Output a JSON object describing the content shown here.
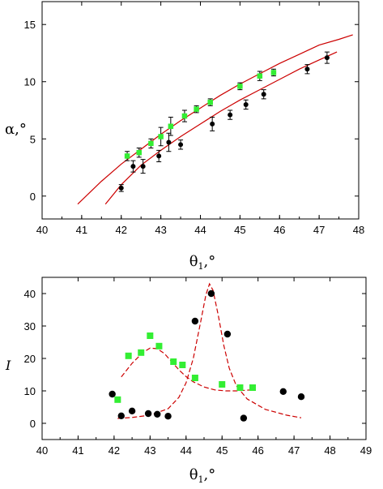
{
  "chart_data": [
    {
      "type": "scatter",
      "title": "",
      "xlabel": "θ1,°",
      "ylabel": "α,°",
      "xlim": [
        40,
        48
      ],
      "ylim": [
        -2,
        17
      ],
      "xticks": [
        40,
        41,
        42,
        43,
        44,
        45,
        46,
        47,
        48
      ],
      "yticks": [
        0,
        5,
        10,
        15
      ],
      "grid": false,
      "colors": {
        "black": "#000000",
        "green": "#33ee33",
        "curve": "#cc0000"
      },
      "series": [
        {
          "marker": "black-circle",
          "points": [
            {
              "x": 42.0,
              "y": 0.7,
              "err": 0.3
            },
            {
              "x": 42.3,
              "y": 2.6,
              "err": 0.5
            },
            {
              "x": 42.55,
              "y": 2.6,
              "err": 0.6
            },
            {
              "x": 42.95,
              "y": 3.5,
              "err": 0.5
            },
            {
              "x": 43.2,
              "y": 4.7,
              "err": 0.8
            },
            {
              "x": 43.5,
              "y": 4.5,
              "err": 0.4
            },
            {
              "x": 44.3,
              "y": 6.3,
              "err": 0.6
            },
            {
              "x": 44.75,
              "y": 7.1,
              "err": 0.4
            },
            {
              "x": 45.15,
              "y": 8.0,
              "err": 0.4
            },
            {
              "x": 45.6,
              "y": 8.9,
              "err": 0.4
            },
            {
              "x": 46.7,
              "y": 11.1,
              "err": 0.4
            },
            {
              "x": 47.2,
              "y": 12.1,
              "err": 0.5
            }
          ]
        },
        {
          "marker": "green-square",
          "points": [
            {
              "x": 42.15,
              "y": 3.5,
              "err": 0.4
            },
            {
              "x": 42.45,
              "y": 3.8,
              "err": 0.4
            },
            {
              "x": 42.75,
              "y": 4.6,
              "err": 0.4
            },
            {
              "x": 43.0,
              "y": 5.2,
              "err": 0.8
            },
            {
              "x": 43.25,
              "y": 6.1,
              "err": 0.8
            },
            {
              "x": 43.6,
              "y": 7.0,
              "err": 0.5
            },
            {
              "x": 43.9,
              "y": 7.6,
              "err": 0.3
            },
            {
              "x": 44.25,
              "y": 8.2,
              "err": 0.3
            },
            {
              "x": 45.0,
              "y": 9.6,
              "err": 0.3
            },
            {
              "x": 45.5,
              "y": 10.5,
              "err": 0.4
            },
            {
              "x": 45.85,
              "y": 10.8,
              "err": 0.3
            }
          ]
        }
      ],
      "curves": [
        {
          "x": [
            40.9,
            41.5,
            42.0,
            42.5,
            43.0,
            43.5,
            44.0,
            44.5,
            45.0,
            45.5,
            46.0,
            46.5,
            47.0,
            47.5,
            47.85
          ],
          "y": [
            -0.7,
            1.3,
            2.8,
            4.1,
            5.4,
            6.6,
            7.7,
            8.8,
            9.8,
            10.7,
            11.6,
            12.4,
            13.2,
            13.7,
            14.1
          ]
        },
        {
          "x": [
            41.6,
            42.0,
            42.5,
            43.0,
            43.5,
            44.0,
            44.5,
            45.0,
            45.5,
            46.0,
            46.5,
            47.0,
            47.45
          ],
          "y": [
            -0.7,
            1.0,
            2.7,
            4.0,
            5.2,
            6.3,
            7.4,
            8.4,
            9.3,
            10.2,
            11.1,
            11.9,
            12.6
          ]
        }
      ]
    },
    {
      "type": "scatter",
      "title": "",
      "xlabel": "θ1,°",
      "ylabel": "I",
      "xlim": [
        40,
        49
      ],
      "ylim": [
        -5,
        45
      ],
      "xticks": [
        40,
        41,
        42,
        43,
        44,
        45,
        46,
        47,
        48,
        49
      ],
      "yticks": [
        0,
        10,
        20,
        30,
        40
      ],
      "grid": false,
      "colors": {
        "black": "#000000",
        "green": "#33ee33",
        "curve": "#cc0000"
      },
      "series": [
        {
          "marker": "black-circle",
          "points": [
            {
              "x": 41.95,
              "y": 9
            },
            {
              "x": 42.2,
              "y": 2.3
            },
            {
              "x": 42.5,
              "y": 3.8
            },
            {
              "x": 42.95,
              "y": 3
            },
            {
              "x": 43.2,
              "y": 2.8
            },
            {
              "x": 43.5,
              "y": 2.2
            },
            {
              "x": 44.25,
              "y": 31.5
            },
            {
              "x": 44.7,
              "y": 40
            },
            {
              "x": 45.15,
              "y": 27.5
            },
            {
              "x": 45.6,
              "y": 1.6
            },
            {
              "x": 46.7,
              "y": 9.8
            },
            {
              "x": 47.2,
              "y": 8.2
            }
          ]
        },
        {
          "marker": "green-square",
          "points": [
            {
              "x": 42.1,
              "y": 7.3
            },
            {
              "x": 42.4,
              "y": 20.8
            },
            {
              "x": 42.75,
              "y": 21.8
            },
            {
              "x": 43.0,
              "y": 27
            },
            {
              "x": 43.25,
              "y": 23.8
            },
            {
              "x": 43.65,
              "y": 19
            },
            {
              "x": 43.9,
              "y": 18
            },
            {
              "x": 44.25,
              "y": 14
            },
            {
              "x": 45.0,
              "y": 12
            },
            {
              "x": 45.5,
              "y": 11
            },
            {
              "x": 45.85,
              "y": 11
            }
          ]
        }
      ],
      "curves": [
        {
          "x": [
            42.2,
            42.5,
            42.8,
            43.0,
            43.2,
            43.4,
            43.6,
            43.8,
            44.0,
            44.2,
            44.5,
            44.8,
            45.1,
            45.4,
            45.8
          ],
          "y": [
            14.3,
            18.5,
            21.8,
            23.2,
            23.0,
            21.5,
            19.0,
            16.5,
            14.4,
            12.8,
            11.2,
            10.3,
            10.0,
            10.0,
            10.3
          ]
        },
        {
          "x": [
            42.1,
            42.5,
            43.0,
            43.5,
            43.8,
            44.0,
            44.2,
            44.4,
            44.55,
            44.65,
            44.75,
            44.9,
            45.05,
            45.2,
            45.4,
            45.7,
            46.2,
            46.8,
            47.2
          ],
          "y": [
            1.5,
            1.8,
            2.5,
            4.5,
            8.0,
            12.5,
            20.0,
            31.0,
            39.5,
            43.0,
            41.0,
            33.0,
            24.0,
            17.0,
            11.5,
            7.5,
            4.3,
            2.5,
            1.7
          ]
        }
      ]
    }
  ]
}
